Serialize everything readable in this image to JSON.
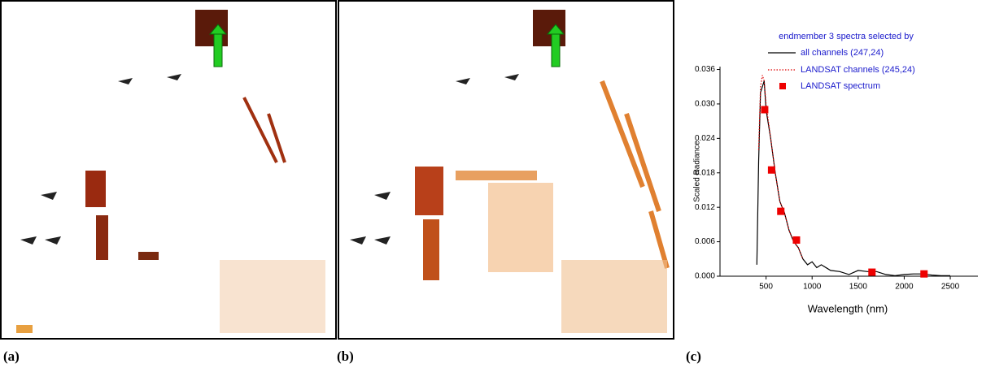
{
  "panel_labels": [
    "(a)",
    "(b)",
    "(c)"
  ],
  "chart_data": {
    "type": "line",
    "legend_title": "endmember 3 spectra selected by",
    "x_label": "Wavelength (nm)",
    "y_label": "Scaled Radiance",
    "xlim": [
      0,
      2800
    ],
    "xticks": [
      500,
      1000,
      1500,
      2000,
      2500
    ],
    "ylim": [
      0,
      0.0365
    ],
    "yticks": [
      {
        "value": 0,
        "label": "0.000"
      },
      {
        "value": 0.006,
        "label": "0.006"
      },
      {
        "value": 0.012,
        "label": "0.012"
      },
      {
        "value": 0.018,
        "label": "0.018"
      },
      {
        "value": 0.024,
        "label": "0.024"
      },
      {
        "value": 0.03,
        "label": "0.030"
      },
      {
        "value": 0.036,
        "label": "0.036"
      }
    ],
    "series": [
      {
        "name": "all channels (247,24)",
        "color": "#000000",
        "style": "solid",
        "x": [
          400,
          420,
          440,
          460,
          480,
          500,
          550,
          600,
          650,
          700,
          750,
          800,
          850,
          900,
          950,
          1000,
          1050,
          1100,
          1200,
          1300,
          1400,
          1500,
          1600,
          1700,
          1800,
          1900,
          2000,
          2100,
          2200,
          2300,
          2400,
          2500
        ],
        "values": [
          0.002,
          0.02,
          0.032,
          0.033,
          0.034,
          0.029,
          0.024,
          0.018,
          0.013,
          0.011,
          0.008,
          0.006,
          0.005,
          0.003,
          0.002,
          0.0025,
          0.0015,
          0.002,
          0.001,
          0.0008,
          0.0003,
          0.001,
          0.0008,
          0.0008,
          0.0003,
          0.0001,
          0.0003,
          0.0004,
          0.0004,
          0.0002,
          0.0001,
          0.0001
        ]
      },
      {
        "name": "LANDSAT channels (245,24)",
        "color": "#dd0000",
        "style": "dotted",
        "x": [
          420,
          440,
          460,
          480,
          500,
          550,
          600,
          650,
          700,
          750,
          800,
          850,
          900
        ],
        "values": [
          0.022,
          0.033,
          0.035,
          0.034,
          0.03,
          0.024,
          0.018,
          0.013,
          0.011,
          0.008,
          0.006,
          0.005,
          0.003
        ]
      },
      {
        "name": "LANDSAT spectrum",
        "color": "#ee0000",
        "style": "markers",
        "x": [
          485,
          560,
          660,
          830,
          1650,
          2215
        ],
        "values": [
          0.029,
          0.0185,
          0.0113,
          0.0063,
          0.0007,
          0.0004
        ]
      }
    ]
  }
}
